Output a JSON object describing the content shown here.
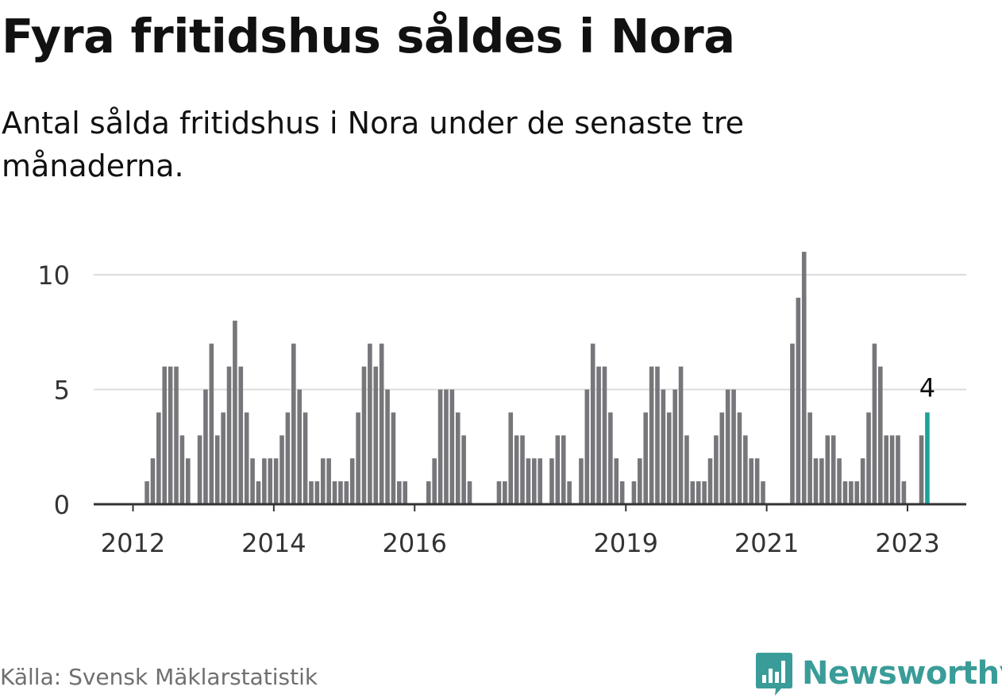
{
  "title": "Fyra fritidshus såldes i Nora",
  "subtitle": "Antal sålda fritidshus i Nora under de senaste tre månaderna.",
  "source": "Källa: Svensk Mäklarstatistik",
  "brand": "Newsworthy",
  "colors": {
    "bar": "#77767b",
    "highlight": "#1aa39a",
    "grid": "#dcdcdc",
    "axis": "#333333",
    "brand": "#3a9c98"
  },
  "chart_data": {
    "type": "bar",
    "x_start": "2012-01",
    "values": [
      0,
      0,
      0,
      0,
      1,
      2,
      4,
      6,
      6,
      6,
      3,
      2,
      0,
      3,
      5,
      7,
      3,
      4,
      6,
      8,
      6,
      4,
      2,
      1,
      2,
      2,
      2,
      3,
      4,
      7,
      5,
      4,
      1,
      1,
      2,
      2,
      1,
      1,
      1,
      2,
      4,
      6,
      7,
      6,
      7,
      5,
      4,
      1,
      1,
      0,
      0,
      0,
      1,
      2,
      5,
      5,
      5,
      4,
      3,
      1,
      0,
      0,
      0,
      0,
      1,
      1,
      4,
      3,
      3,
      2,
      2,
      2,
      0,
      2,
      3,
      3,
      1,
      0,
      2,
      5,
      7,
      6,
      6,
      4,
      2,
      1,
      0,
      1,
      2,
      4,
      6,
      6,
      5,
      4,
      5,
      6,
      3,
      1,
      1,
      1,
      2,
      3,
      4,
      5,
      5,
      4,
      3,
      2,
      2,
      1,
      0,
      0,
      0,
      0,
      7,
      9,
      11,
      4,
      2,
      2,
      3,
      3,
      2,
      1,
      1,
      1,
      2,
      4,
      7,
      6,
      3,
      3,
      3,
      1,
      0,
      0,
      3,
      4
    ],
    "highlight_label": "4",
    "x_ticks": [
      "2012",
      "2014",
      "2016",
      "2019",
      "2021",
      "2023"
    ],
    "y_ticks": [
      "0",
      "5",
      "10"
    ],
    "ylim": [
      0,
      12
    ],
    "grid": true
  }
}
